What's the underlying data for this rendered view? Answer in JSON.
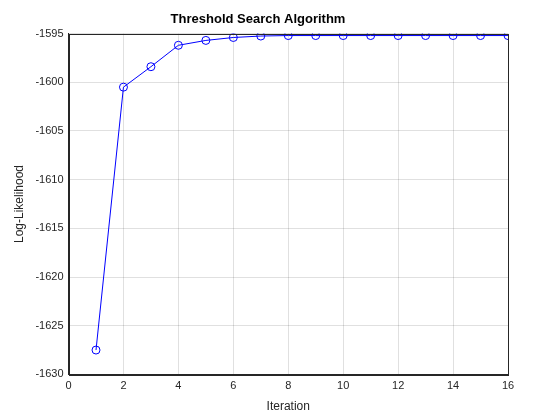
{
  "chart_data": {
    "type": "line",
    "title": "Threshold Search Algorithm",
    "x_label": "Iteration",
    "y_label": "Log-Likelihood",
    "x": [
      1,
      2,
      3,
      4,
      5,
      6,
      7,
      8,
      9,
      10,
      11,
      12,
      13,
      14,
      15,
      16
    ],
    "values": [
      -1627.5,
      -1600.5,
      -1598.4,
      -1596.2,
      -1595.7,
      -1595.4,
      -1595.25,
      -1595.2,
      -1595.2,
      -1595.2,
      -1595.2,
      -1595.2,
      -1595.2,
      -1595.2,
      -1595.2,
      -1595.2
    ],
    "color": "#0000ff",
    "marker": "circle",
    "line_style": "solid",
    "xlim": [
      0,
      16
    ],
    "xticks": [
      0,
      2,
      4,
      6,
      8,
      10,
      12,
      14,
      16
    ],
    "ylim": [
      -1630,
      -1595
    ],
    "yticks": [
      -1630,
      -1625,
      -1620,
      -1615,
      -1610,
      -1605,
      -1600,
      -1595
    ],
    "grid": true
  }
}
